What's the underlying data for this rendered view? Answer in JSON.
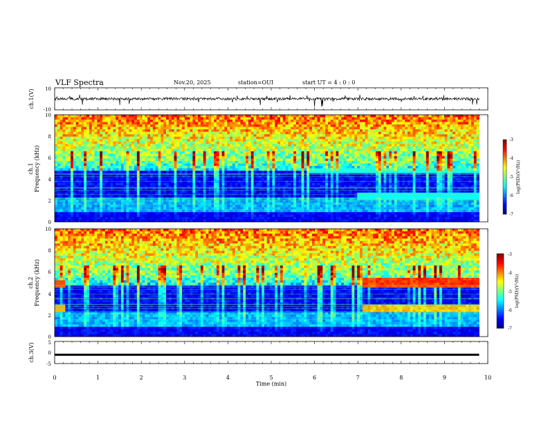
{
  "header": {
    "title": "VLF Spectra",
    "date": "Nov.20, 2025",
    "station": "station=OUI",
    "start": "start  UT  =   4 : 0  : 0"
  },
  "chart_data": [
    {
      "type": "line",
      "name": "ch.1 waveform",
      "ylabel": "ch.1(V)",
      "ylim": [
        -10,
        10
      ],
      "yticks": [
        "10",
        "-10"
      ],
      "baseline": 0
    },
    {
      "type": "heatmap",
      "name": "ch.1 spectrogram",
      "ylabel_a": "ch.1",
      "ylabel_b": "Frequency (kHz)",
      "ylim": [
        0,
        10
      ],
      "yticks": [
        "0",
        "2",
        "4",
        "6",
        "8",
        "10"
      ],
      "colorbar": {
        "label": "log(PSD)(V²/Hz)",
        "range": [
          -7,
          -3
        ],
        "ticks": [
          "-3",
          "-4",
          "-5",
          "-6",
          "-7"
        ]
      }
    },
    {
      "type": "heatmap",
      "name": "ch.2 spectrogram",
      "ylabel_a": "ch.2",
      "ylabel_b": "Frequency (kHz)",
      "ylim": [
        0,
        10
      ],
      "yticks": [
        "0",
        "2",
        "4",
        "6",
        "8",
        "10"
      ],
      "colorbar": {
        "label": "log(PSD)(V²/Hz)",
        "range": [
          -7,
          -3
        ],
        "ticks": [
          "-3",
          "-4",
          "-5",
          "-6",
          "-7"
        ]
      }
    },
    {
      "type": "line",
      "name": "ch.3 waveform",
      "ylabel": "ch.3(V)",
      "ylim": [
        -5,
        5
      ],
      "yticks": [
        "5",
        "0",
        "-5"
      ],
      "level": -1
    }
  ],
  "xaxis": {
    "label": "Time (min)",
    "range": [
      0,
      10
    ],
    "ticks": [
      "0",
      "1",
      "2",
      "3",
      "4",
      "5",
      "6",
      "7",
      "8",
      "9",
      "10"
    ],
    "data_end": 9.8
  }
}
